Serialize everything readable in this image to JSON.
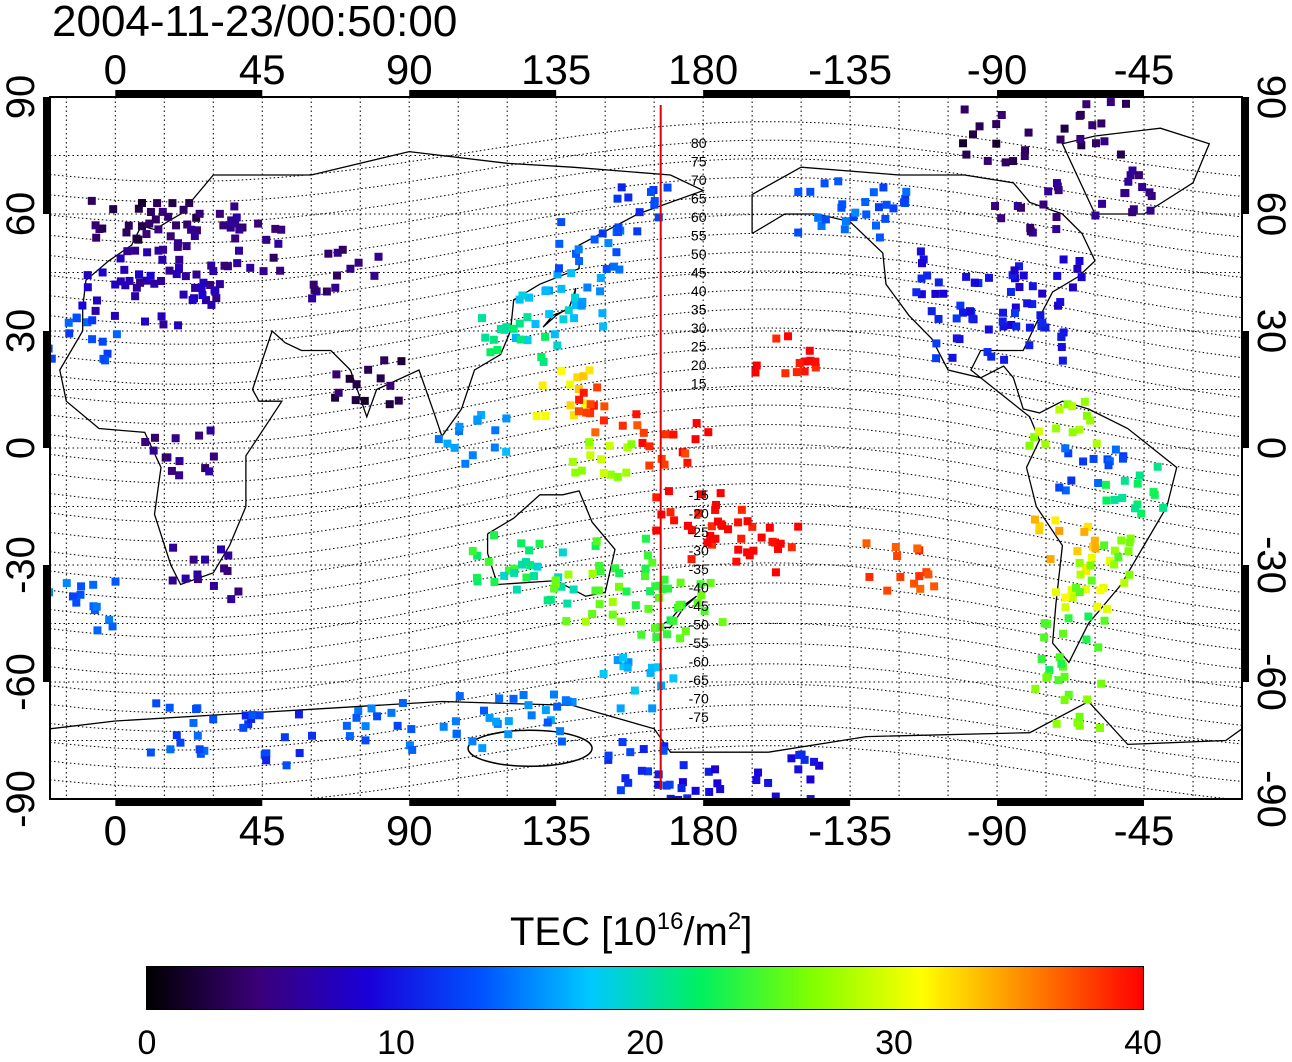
{
  "timestamp": "2004-11-23/00:50:00",
  "colorbar": {
    "title_prefix": "TEC  [10",
    "title_exp1": "16",
    "title_mid": "/m",
    "title_exp2": "2",
    "title_suffix": "]",
    "ticks": [
      "0",
      "10",
      "20",
      "30",
      "40"
    ],
    "range": [
      0,
      40
    ],
    "colors": [
      "#000000",
      "#3a0078",
      "#1a00d8",
      "#0050ff",
      "#00c8ff",
      "#00f060",
      "#80ff00",
      "#ffff00",
      "#ff8000",
      "#ff0000"
    ]
  },
  "map": {
    "lon_labels": [
      "0",
      "45",
      "90",
      "135",
      "180",
      "-135",
      "-90",
      "-45"
    ],
    "lat_labels": [
      "90",
      "60",
      "30",
      "0",
      "-30",
      "-60",
      "-90"
    ],
    "lon_range": [
      -20,
      345
    ],
    "lat_range": [
      -90,
      90
    ],
    "meridian_lon": 167,
    "meridian_color": "#e00000",
    "mag_lat_labels": [
      "80",
      "75",
      "70",
      "65",
      "60",
      "55",
      "50",
      "45",
      "40",
      "35",
      "30",
      "25",
      "20",
      "15",
      "-15",
      "-20",
      "-25",
      "-30",
      "-35",
      "-40",
      "-45",
      "-50",
      "-55",
      "-60",
      "-65",
      "-70",
      "-75"
    ],
    "tec_patches": [
      {
        "lon": 0,
        "lat": 58,
        "v": 3
      },
      {
        "lon": 15,
        "lat": 60,
        "v": 4
      },
      {
        "lon": 30,
        "lat": 55,
        "v": 5
      },
      {
        "lon": 10,
        "lat": 48,
        "v": 6
      },
      {
        "lon": 25,
        "lat": 45,
        "v": 6
      },
      {
        "lon": 40,
        "lat": 52,
        "v": 5
      },
      {
        "lon": 0,
        "lat": 40,
        "v": 8
      },
      {
        "lon": 20,
        "lat": 38,
        "v": 7
      },
      {
        "lon": 70,
        "lat": 45,
        "v": 5
      },
      {
        "lon": 78,
        "lat": 18,
        "v": 3
      },
      {
        "lon": 20,
        "lat": -2,
        "v": 5
      },
      {
        "lon": 28,
        "lat": -32,
        "v": 6
      },
      {
        "lon": -10,
        "lat": 28,
        "v": 13
      },
      {
        "lon": 130,
        "lat": 33,
        "v": 18
      },
      {
        "lon": 140,
        "lat": 38,
        "v": 16
      },
      {
        "lon": 145,
        "lat": 52,
        "v": 14
      },
      {
        "lon": 160,
        "lat": 62,
        "v": 12
      },
      {
        "lon": 122,
        "lat": 28,
        "v": 22
      },
      {
        "lon": 140,
        "lat": 15,
        "v": 32
      },
      {
        "lon": 152,
        "lat": 10,
        "v": 38
      },
      {
        "lon": 172,
        "lat": 0,
        "v": 39
      },
      {
        "lon": 175,
        "lat": -18,
        "v": 40
      },
      {
        "lon": 185,
        "lat": -22,
        "v": 40
      },
      {
        "lon": 200,
        "lat": -25,
        "v": 40
      },
      {
        "lon": 205,
        "lat": 23,
        "v": 40
      },
      {
        "lon": 110,
        "lat": 2,
        "v": 16
      },
      {
        "lon": 150,
        "lat": -5,
        "v": 28
      },
      {
        "lon": 120,
        "lat": -28,
        "v": 23
      },
      {
        "lon": 130,
        "lat": -33,
        "v": 20
      },
      {
        "lon": 145,
        "lat": -38,
        "v": 27
      },
      {
        "lon": 155,
        "lat": -30,
        "v": 24
      },
      {
        "lon": 168,
        "lat": -43,
        "v": 24
      },
      {
        "lon": 175,
        "lat": -40,
        "v": 25
      },
      {
        "lon": 160,
        "lat": -60,
        "v": 17
      },
      {
        "lon": 235,
        "lat": 60,
        "v": 13
      },
      {
        "lon": 220,
        "lat": 62,
        "v": 14
      },
      {
        "lon": 255,
        "lat": 45,
        "v": 10
      },
      {
        "lon": 270,
        "lat": 38,
        "v": 10
      },
      {
        "lon": 285,
        "lat": 42,
        "v": 9
      },
      {
        "lon": 260,
        "lat": 30,
        "v": 11
      },
      {
        "lon": 280,
        "lat": 28,
        "v": 11
      },
      {
        "lon": 270,
        "lat": 80,
        "v": 3
      },
      {
        "lon": 300,
        "lat": 82,
        "v": 4
      },
      {
        "lon": 310,
        "lat": 65,
        "v": 5
      },
      {
        "lon": 280,
        "lat": 62,
        "v": 5
      },
      {
        "lon": 290,
        "lat": 5,
        "v": 28
      },
      {
        "lon": 300,
        "lat": -5,
        "v": 13
      },
      {
        "lon": 312,
        "lat": -10,
        "v": 22
      },
      {
        "lon": 292,
        "lat": -25,
        "v": 33
      },
      {
        "lon": 298,
        "lat": -35,
        "v": 30
      },
      {
        "lon": 305,
        "lat": -30,
        "v": 26
      },
      {
        "lon": 293,
        "lat": -50,
        "v": 24
      },
      {
        "lon": 292,
        "lat": -65,
        "v": 26
      },
      {
        "lon": 240,
        "lat": -30,
        "v": 38
      },
      {
        "lon": 20,
        "lat": -72,
        "v": 13
      },
      {
        "lon": 50,
        "lat": -75,
        "v": 12
      },
      {
        "lon": 80,
        "lat": -72,
        "v": 14
      },
      {
        "lon": 110,
        "lat": -70,
        "v": 15
      },
      {
        "lon": 130,
        "lat": -70,
        "v": 15
      },
      {
        "lon": 160,
        "lat": -82,
        "v": 12
      },
      {
        "lon": 175,
        "lat": -88,
        "v": 10
      },
      {
        "lon": 205,
        "lat": -85,
        "v": 10
      },
      {
        "lon": -10,
        "lat": -40,
        "v": 14
      }
    ]
  }
}
